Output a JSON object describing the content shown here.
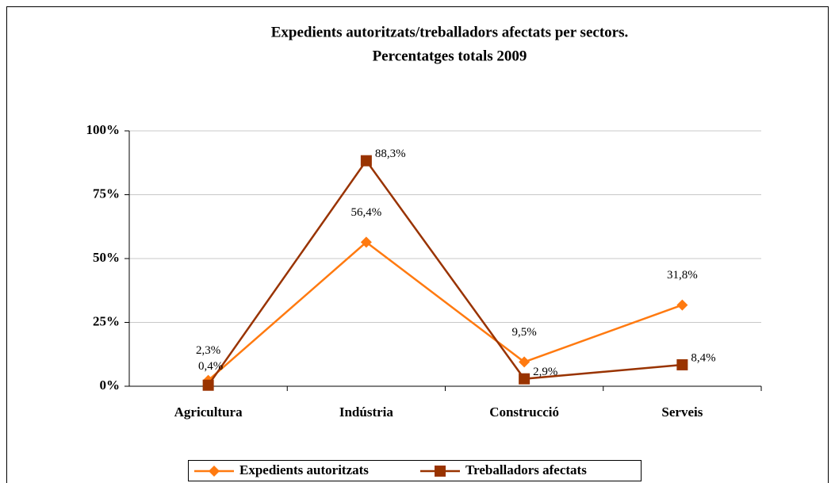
{
  "chart_data": {
    "type": "line",
    "title": [
      "Expedients autoritzats/treballadors afectats per sectors.",
      "Percentatges totals 2009"
    ],
    "categories": [
      "Agricultura",
      "Indústria",
      "Construcció",
      "Serveis"
    ],
    "series": [
      {
        "name": "Expedients autoritzats",
        "color": "#ff7a10",
        "marker": "diamond",
        "values": [
          2.3,
          56.4,
          9.5,
          31.8
        ],
        "value_labels": [
          "2,3%",
          "56,4%",
          "9,5%",
          "31,8%"
        ]
      },
      {
        "name": "Treballadors afectats",
        "color": "#993300",
        "marker": "square",
        "values": [
          0.4,
          88.3,
          2.9,
          8.4
        ],
        "value_labels": [
          "0,4%",
          "88,3%",
          "2,9%",
          "8,4%"
        ]
      }
    ],
    "ylim": [
      0,
      100
    ],
    "yticks": [
      {
        "value": 0,
        "label": "0%"
      },
      {
        "value": 25,
        "label": "25%"
      },
      {
        "value": 50,
        "label": "50%"
      },
      {
        "value": 75,
        "label": "75%"
      },
      {
        "value": 100,
        "label": "100%"
      }
    ],
    "grid": true,
    "legend": "bottom"
  }
}
